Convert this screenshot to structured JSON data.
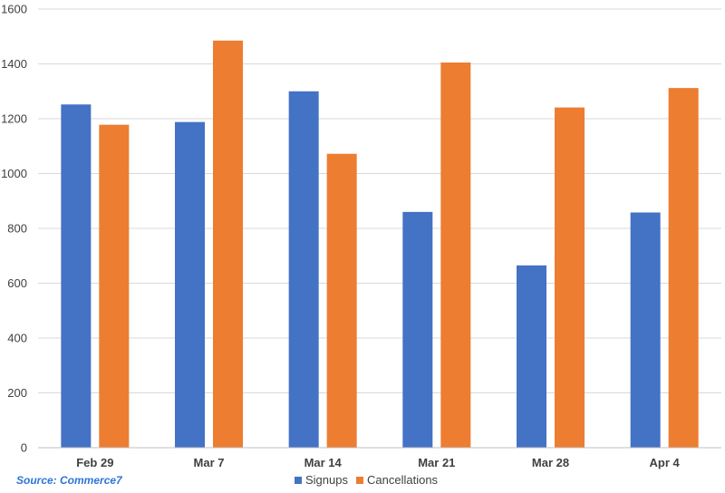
{
  "source_note": "Source: Commerce7",
  "colors": {
    "signups": "#4472c4",
    "cancellations": "#ed7d31",
    "grid": "#d9d9d9",
    "text": "#404040"
  },
  "chart_data": {
    "type": "bar",
    "title": "",
    "xlabel": "",
    "ylabel": "",
    "categories": [
      "Feb 29",
      "Mar 7",
      "Mar 14",
      "Mar 21",
      "Mar 28",
      "Apr 4"
    ],
    "series": [
      {
        "name": "Signups",
        "color": "#4472c4",
        "values": [
          1252,
          1188,
          1300,
          860,
          665,
          858
        ]
      },
      {
        "name": "Cancellations",
        "color": "#ed7d31",
        "values": [
          1178,
          1485,
          1072,
          1405,
          1241,
          1312
        ]
      }
    ],
    "ylim": [
      0,
      1600
    ],
    "yticks": [
      0,
      200,
      400,
      600,
      800,
      1000,
      1200,
      1400,
      1600
    ],
    "grid": true,
    "legend": "bottom"
  }
}
